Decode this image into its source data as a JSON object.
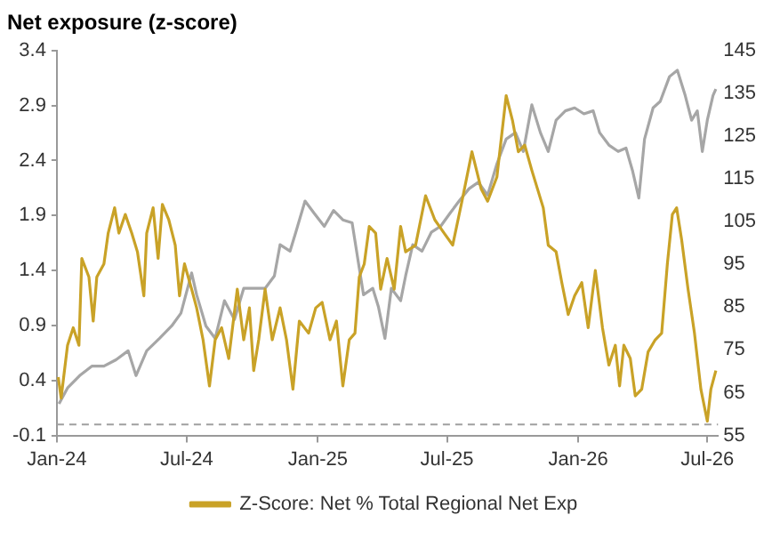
{
  "chart_data": {
    "type": "line",
    "title": "Net exposure (z-score)",
    "xlim": [
      "2024-01-01",
      "2026-07-16"
    ],
    "xticks": [
      {
        "value": "2024-01-01",
        "label": "Jan-24"
      },
      {
        "value": "2024-07-01",
        "label": "Jul-24"
      },
      {
        "value": "2025-01-01",
        "label": "Jan-25"
      },
      {
        "value": "2025-07-01",
        "label": "Jul-25"
      },
      {
        "value": "2026-01-01",
        "label": "Jan-26"
      },
      {
        "value": "2026-07-01",
        "label": "Jul-26"
      }
    ],
    "ylim": [
      -0.1,
      3.4
    ],
    "yticks": [
      -0.1,
      0.4,
      0.9,
      1.4,
      1.9,
      2.4,
      2.9,
      3.4
    ],
    "y2lim": [
      55,
      145
    ],
    "y2ticks": [
      55,
      65,
      75,
      85,
      95,
      105,
      115,
      125,
      135,
      145
    ],
    "grid": false,
    "legend": "bottom",
    "marker": "none",
    "line_style": "solid",
    "ref_lines": [
      {
        "axis": "y",
        "value": 0,
        "color": "#a0a0a0",
        "line_style": "dashed"
      }
    ],
    "series": [
      {
        "name": "Z-Score: Net % Total Regional Net Exp",
        "color": "#c9a227",
        "x": [
          "2024-01-03",
          "2024-01-07",
          "2024-01-16",
          "2024-01-24",
          "2024-02-01",
          "2024-02-05",
          "2024-02-15",
          "2024-02-21",
          "2024-02-26",
          "2024-03-07",
          "2024-03-13",
          "2024-03-22",
          "2024-03-28",
          "2024-04-06",
          "2024-04-15",
          "2024-04-23",
          "2024-05-02",
          "2024-05-06",
          "2024-05-15",
          "2024-05-22",
          "2024-05-28",
          "2024-06-06",
          "2024-06-15",
          "2024-06-21",
          "2024-06-28",
          "2024-07-08",
          "2024-07-15",
          "2024-07-24",
          "2024-08-02",
          "2024-08-10",
          "2024-08-19",
          "2024-08-29",
          "2024-09-10",
          "2024-09-19",
          "2024-09-27",
          "2024-10-03",
          "2024-10-10",
          "2024-10-19",
          "2024-10-29",
          "2024-11-09",
          "2024-11-18",
          "2024-11-27",
          "2024-12-06",
          "2024-12-19",
          "2024-12-29",
          "2025-01-07",
          "2025-01-18",
          "2025-01-27",
          "2025-02-05",
          "2025-02-14",
          "2025-02-22",
          "2025-02-28",
          "2025-03-07",
          "2025-03-14",
          "2025-03-23",
          "2025-03-30",
          "2025-04-08",
          "2025-04-18",
          "2025-04-27",
          "2025-05-04",
          "2025-05-18",
          "2025-06-01",
          "2025-06-14",
          "2025-06-27",
          "2025-07-09",
          "2025-07-22",
          "2025-08-05",
          "2025-08-18",
          "2025-08-27",
          "2025-09-09",
          "2025-09-22",
          "2025-10-01",
          "2025-10-09",
          "2025-10-18",
          "2025-10-28",
          "2025-11-05",
          "2025-11-13",
          "2025-11-20",
          "2025-12-01",
          "2025-12-09",
          "2025-12-18",
          "2025-12-27",
          "2026-01-06",
          "2026-01-15",
          "2026-01-25",
          "2026-02-04",
          "2026-02-13",
          "2026-02-22",
          "2026-02-28",
          "2026-03-06",
          "2026-03-15",
          "2026-03-22",
          "2026-03-31",
          "2026-04-09",
          "2026-04-19",
          "2026-04-28",
          "2026-05-06",
          "2026-05-13",
          "2026-05-19",
          "2026-05-26",
          "2026-06-04",
          "2026-06-13",
          "2026-06-22",
          "2026-07-01",
          "2026-07-06",
          "2026-07-13"
        ],
        "values": [
          0.43,
          0.24,
          0.72,
          0.88,
          0.72,
          1.51,
          1.34,
          0.94,
          1.34,
          1.46,
          1.74,
          1.97,
          1.74,
          1.91,
          1.74,
          1.57,
          1.17,
          1.74,
          1.97,
          1.51,
          2.0,
          1.86,
          1.63,
          1.17,
          1.46,
          1.23,
          1.06,
          0.77,
          0.35,
          0.77,
          0.88,
          0.6,
          1.23,
          0.77,
          1.06,
          0.49,
          0.77,
          1.23,
          0.77,
          1.06,
          0.77,
          0.32,
          0.94,
          0.83,
          1.06,
          1.11,
          0.77,
          0.94,
          0.35,
          0.77,
          0.83,
          1.34,
          1.46,
          1.8,
          1.74,
          1.23,
          1.51,
          1.23,
          1.8,
          1.57,
          1.63,
          2.08,
          1.86,
          1.74,
          1.63,
          2.03,
          2.48,
          2.14,
          2.03,
          2.25,
          2.99,
          2.76,
          2.48,
          2.54,
          2.31,
          2.14,
          1.97,
          1.63,
          1.57,
          1.29,
          1.0,
          1.17,
          1.29,
          0.88,
          1.4,
          0.88,
          0.54,
          0.72,
          0.35,
          0.72,
          0.6,
          0.26,
          0.32,
          0.66,
          0.77,
          0.83,
          1.46,
          1.91,
          1.97,
          1.68,
          1.23,
          0.83,
          0.32,
          0.03,
          0.32,
          0.49
        ]
      },
      {
        "color": "#a6a6a6",
        "axis": "y2",
        "x": [
          "2024-01-04",
          "2024-01-16",
          "2024-02-02",
          "2024-02-19",
          "2024-03-07",
          "2024-03-24",
          "2024-04-10",
          "2024-04-21",
          "2024-05-06",
          "2024-05-24",
          "2024-06-10",
          "2024-06-23",
          "2024-07-08",
          "2024-07-15",
          "2024-07-28",
          "2024-08-10",
          "2024-08-23",
          "2024-09-06",
          "2024-09-19",
          "2024-10-01",
          "2024-10-19",
          "2024-11-01",
          "2024-11-09",
          "2024-11-23",
          "2024-12-01",
          "2024-12-14",
          "2024-12-27",
          "2025-01-10",
          "2025-01-23",
          "2025-02-05",
          "2025-02-18",
          "2025-02-27",
          "2025-03-06",
          "2025-03-19",
          "2025-03-27",
          "2025-04-05",
          "2025-04-14",
          "2025-04-27",
          "2025-05-04",
          "2025-05-14",
          "2025-05-27",
          "2025-06-09",
          "2025-06-22",
          "2025-07-05",
          "2025-07-18",
          "2025-08-01",
          "2025-08-14",
          "2025-08-27",
          "2025-09-09",
          "2025-09-22",
          "2025-10-05",
          "2025-10-16",
          "2025-10-28",
          "2025-11-09",
          "2025-11-20",
          "2025-12-01",
          "2025-12-14",
          "2025-12-27",
          "2026-01-09",
          "2026-01-22",
          "2026-01-31",
          "2026-02-13",
          "2026-02-26",
          "2026-03-09",
          "2026-03-18",
          "2026-03-27",
          "2026-04-04",
          "2026-04-16",
          "2026-04-26",
          "2026-05-09",
          "2026-05-20",
          "2026-05-31",
          "2026-06-09",
          "2026-06-17",
          "2026-06-24",
          "2026-07-01",
          "2026-07-09",
          "2026-07-13"
        ],
        "values": [
          62.4,
          66.1,
          69,
          71.2,
          71.2,
          72.7,
          74.8,
          69,
          74.8,
          77.7,
          80.6,
          83.6,
          93,
          87.9,
          80.6,
          77.7,
          86.5,
          82.1,
          89.4,
          89.4,
          89.4,
          92.3,
          99.6,
          98.1,
          102.5,
          109.8,
          106.9,
          103.9,
          107.6,
          105.4,
          104.7,
          95.2,
          87.9,
          89.4,
          85,
          77.7,
          89.4,
          86.5,
          92.3,
          99.6,
          98.1,
          102.5,
          103.9,
          106.9,
          109.8,
          112.7,
          114.2,
          111.2,
          118.5,
          124.3,
          125.8,
          121.4,
          132.3,
          125.8,
          121.4,
          128.7,
          130.9,
          131.6,
          130.2,
          130.9,
          125.8,
          122.9,
          121.4,
          122.2,
          117,
          110.5,
          124.3,
          131.6,
          133.1,
          138.9,
          140.4,
          134.5,
          128.7,
          130.9,
          121.4,
          128.7,
          134.5,
          136
        ]
      }
    ]
  }
}
